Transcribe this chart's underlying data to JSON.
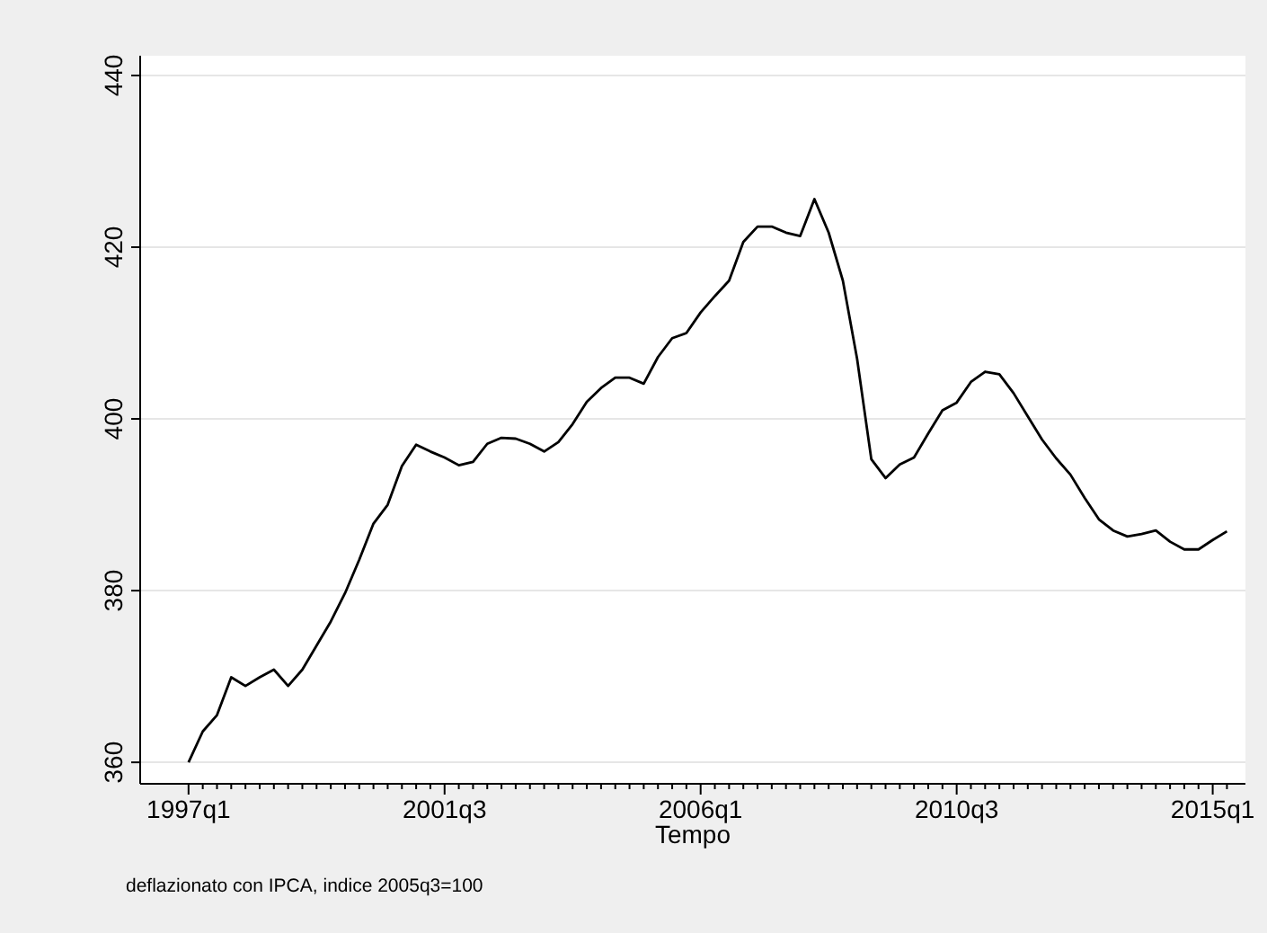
{
  "chart_data": {
    "type": "line",
    "xlabel": "Tempo",
    "annotations": [
      "deflazionato con IPCA, indice 2005q3=100"
    ],
    "categories": [
      "1997q1",
      null,
      null,
      null,
      null,
      null,
      null,
      null,
      null,
      null,
      null,
      null,
      null,
      null,
      null,
      null,
      null,
      null,
      "2001q3",
      null,
      null,
      null,
      null,
      null,
      null,
      null,
      null,
      null,
      null,
      null,
      null,
      null,
      null,
      null,
      null,
      null,
      "2006q1",
      null,
      null,
      null,
      null,
      null,
      null,
      null,
      null,
      null,
      null,
      null,
      null,
      null,
      null,
      null,
      null,
      null,
      "2010q3",
      null,
      null,
      null,
      null,
      null,
      null,
      null,
      null,
      null,
      null,
      null,
      null,
      null,
      null,
      null,
      null,
      null,
      "2015q1",
      null
    ],
    "series": [
      {
        "color": "#000000",
        "values": [
          360,
          363.6,
          365.5,
          369.9,
          368.9,
          369.9,
          370.8,
          368.9,
          370.8,
          373.6,
          376.4,
          379.7,
          383.6,
          387.8,
          390,
          394.5,
          397,
          396.2,
          395.5,
          394.6,
          395,
          397.1,
          397.8,
          397.7,
          397.1,
          396.2,
          397.3,
          399.4,
          402,
          403.6,
          404.8,
          404.8,
          404.1,
          407.2,
          409.4,
          410,
          412.4,
          414.3,
          416.1,
          420.6,
          422.4,
          422.4,
          421.7,
          421.3,
          425.6,
          421.7,
          416.1,
          407,
          395.3,
          393.1,
          394.7,
          395.5,
          398.3,
          401,
          401.9,
          404.3,
          405.5,
          405.2,
          403,
          400.3,
          397.6,
          395.4,
          393.5,
          390.8,
          388.3,
          387,
          386.3,
          386.6,
          387,
          385.7,
          384.8,
          384.8,
          385.9,
          386.9
        ]
      }
    ],
    "ylim": [
      357.5,
      442.3
    ],
    "yticks": [
      360,
      380,
      400,
      420,
      440
    ],
    "grid": "y",
    "marker": "none",
    "line_style": "solid"
  }
}
